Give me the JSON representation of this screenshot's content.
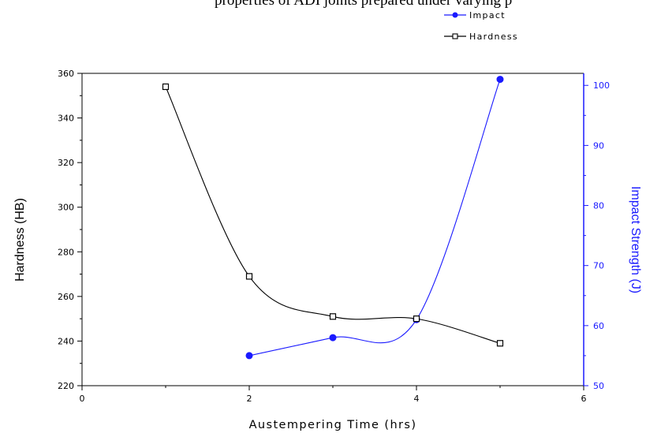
{
  "caption_fragment": "properties of ADI joints prepared under varying p",
  "chart_data": {
    "type": "line",
    "x": [
      1,
      2,
      3,
      4,
      5
    ],
    "xlabel": "Austempering Time (hrs)",
    "xlim": [
      0,
      6
    ],
    "xticks": [
      0,
      2,
      4,
      6
    ],
    "ylabel_left": "Hardness (HB)",
    "ylim_left": [
      220,
      360
    ],
    "yticks_left": [
      220,
      240,
      260,
      280,
      300,
      320,
      340,
      360
    ],
    "ylabel_right": "Impact Strength (J)",
    "ylim_right": [
      50,
      102
    ],
    "yticks_right": [
      50,
      60,
      70,
      80,
      90,
      100
    ],
    "legend_position": "top-right-outside",
    "grid": false,
    "series": [
      {
        "name": "Impact",
        "axis": "right",
        "color": "#1a1aff",
        "marker": "filled-circle",
        "x": [
          2,
          3,
          4,
          5
        ],
        "y": [
          55,
          58,
          61,
          101
        ]
      },
      {
        "name": "Hardness",
        "axis": "left",
        "color": "#000000",
        "marker": "open-square",
        "x": [
          1,
          2,
          3,
          4,
          5
        ],
        "y": [
          354,
          269,
          251,
          250,
          239
        ]
      }
    ]
  }
}
